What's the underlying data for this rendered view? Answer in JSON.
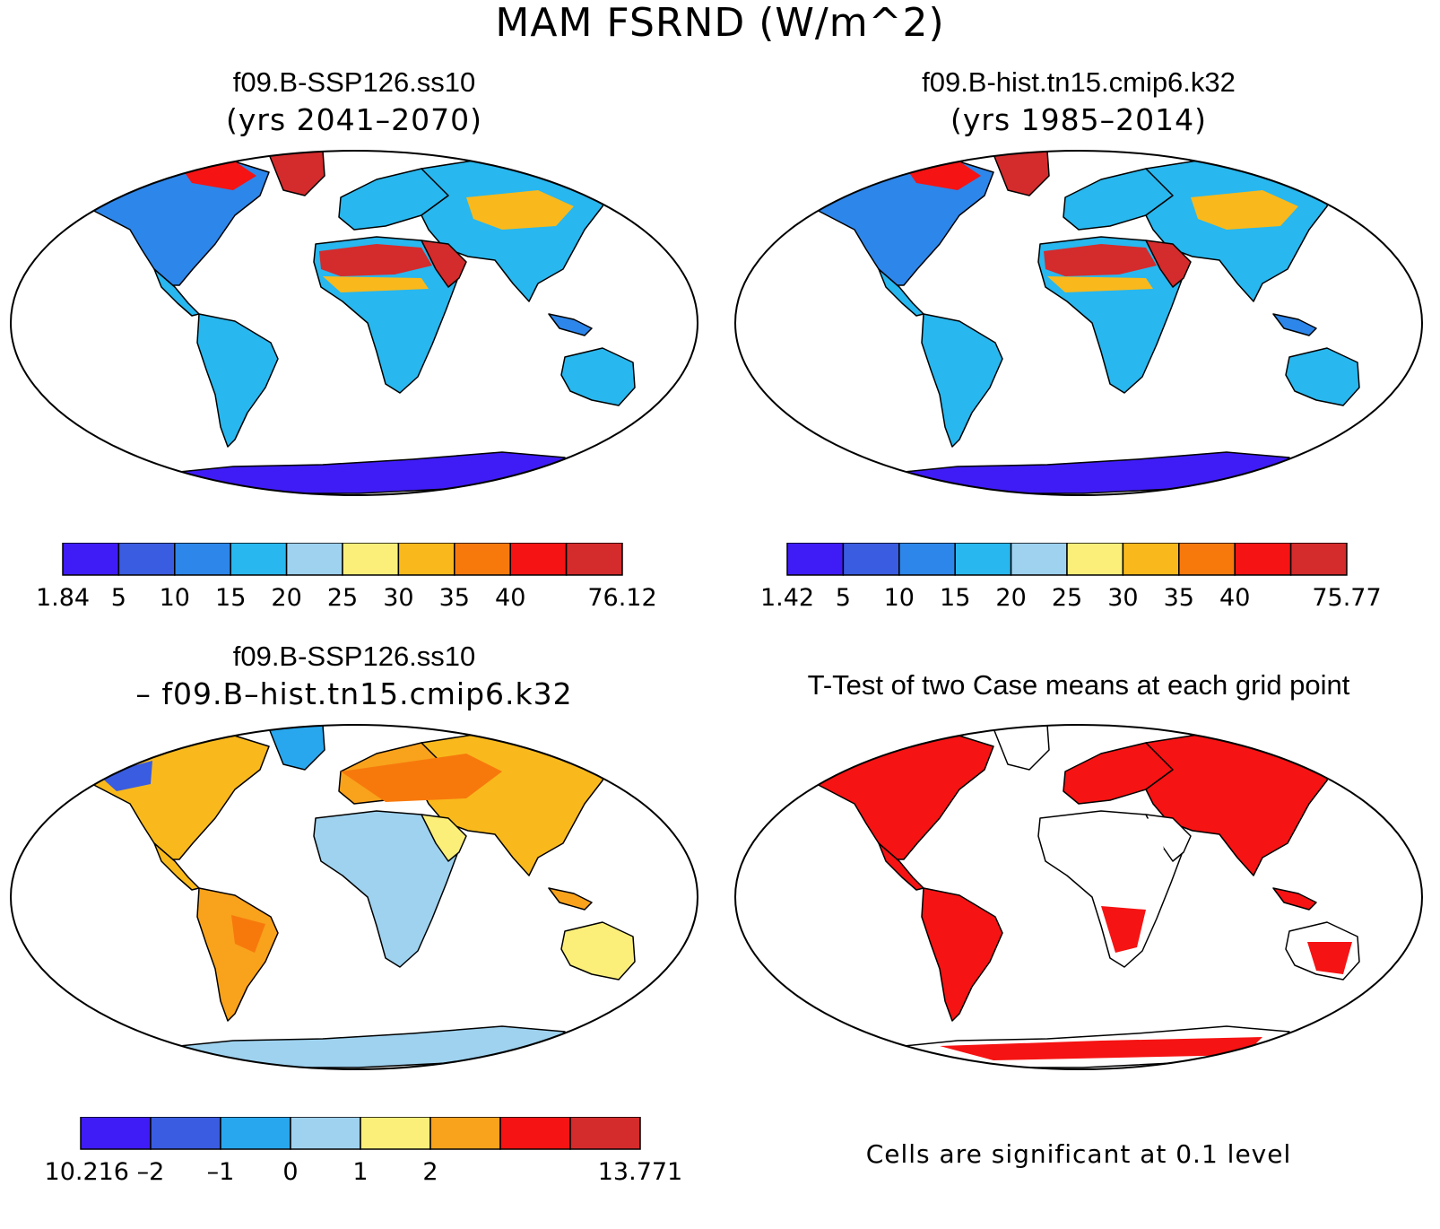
{
  "figure": {
    "title": "MAM FSRND (W/m^2)"
  },
  "panels": [
    {
      "title": "f09.B-SSP126.ss10",
      "subtitle": "(yrs 2041–2070)",
      "colorbar": {
        "colors": [
          "#3f1cf5",
          "#3a5ce0",
          "#2d86ea",
          "#28b7ee",
          "#9ed2ef",
          "#fbef7a",
          "#f9b91c",
          "#f7790c",
          "#f51313",
          "#d42b2c"
        ],
        "labels": [
          "1.84",
          "5",
          "10",
          "15",
          "20",
          "25",
          "30",
          "35",
          "40",
          "76.12"
        ]
      }
    },
    {
      "title": "f09.B-hist.tn15.cmip6.k32",
      "subtitle": "(yrs 1985–2014)",
      "colorbar": {
        "colors": [
          "#3f1cf5",
          "#3a5ce0",
          "#2d86ea",
          "#28b7ee",
          "#9ed2ef",
          "#fbef7a",
          "#f9b91c",
          "#f7790c",
          "#f51313",
          "#d42b2c"
        ],
        "labels": [
          "1.42",
          "5",
          "10",
          "15",
          "20",
          "25",
          "30",
          "35",
          "40",
          "75.77"
        ]
      }
    },
    {
      "title": "f09.B-SSP126.ss10",
      "subtitle": "– f09.B–hist.tn15.cmip6.k32",
      "colorbar": {
        "colors": [
          "#3f1cf5",
          "#3a5ce0",
          "#28a7ee",
          "#9ed2ef",
          "#fbef7a",
          "#f9a21c",
          "#f51313",
          "#d42b2c"
        ],
        "labels": [
          "–10.216",
          "–2",
          "–1",
          "0",
          "1",
          "2",
          "13.771"
        ]
      }
    },
    {
      "title": "T-Test of two Case means at each grid point",
      "footnote": "Cells are significant at 0.1 level"
    }
  ],
  "colors": {
    "ocean": "#ffffff",
    "coast": "#000000",
    "significant": "#f51313"
  }
}
